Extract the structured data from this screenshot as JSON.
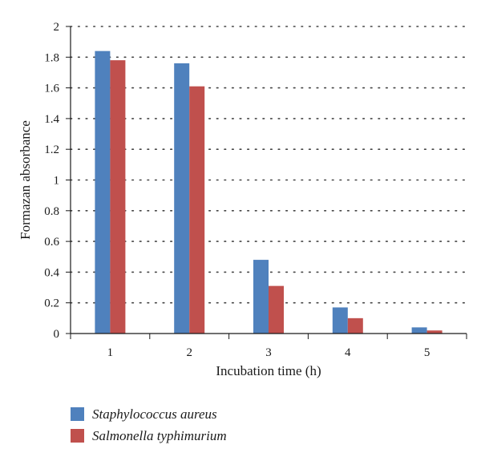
{
  "chart_data": {
    "type": "bar",
    "title": "",
    "xlabel": "Incubation time (h)",
    "ylabel": "Formazan absorbance",
    "categories": [
      "1",
      "2",
      "3",
      "4",
      "5"
    ],
    "series": [
      {
        "name": "Staphylococcus aureus",
        "color": "#4f81bd",
        "values": [
          1.84,
          1.76,
          0.48,
          0.17,
          0.04
        ]
      },
      {
        "name": "Salmonella typhimurium",
        "color": "#c0504d",
        "values": [
          1.78,
          1.61,
          0.31,
          0.1,
          0.02
        ]
      }
    ],
    "ylim": [
      0,
      2
    ],
    "yticks": [
      "0",
      "0.2",
      "0.4",
      "0.6",
      "0.8",
      "1",
      "1.2",
      "1.4",
      "1.6",
      "1.8",
      "2"
    ],
    "grid": true,
    "legend_position": "bottom-left"
  }
}
